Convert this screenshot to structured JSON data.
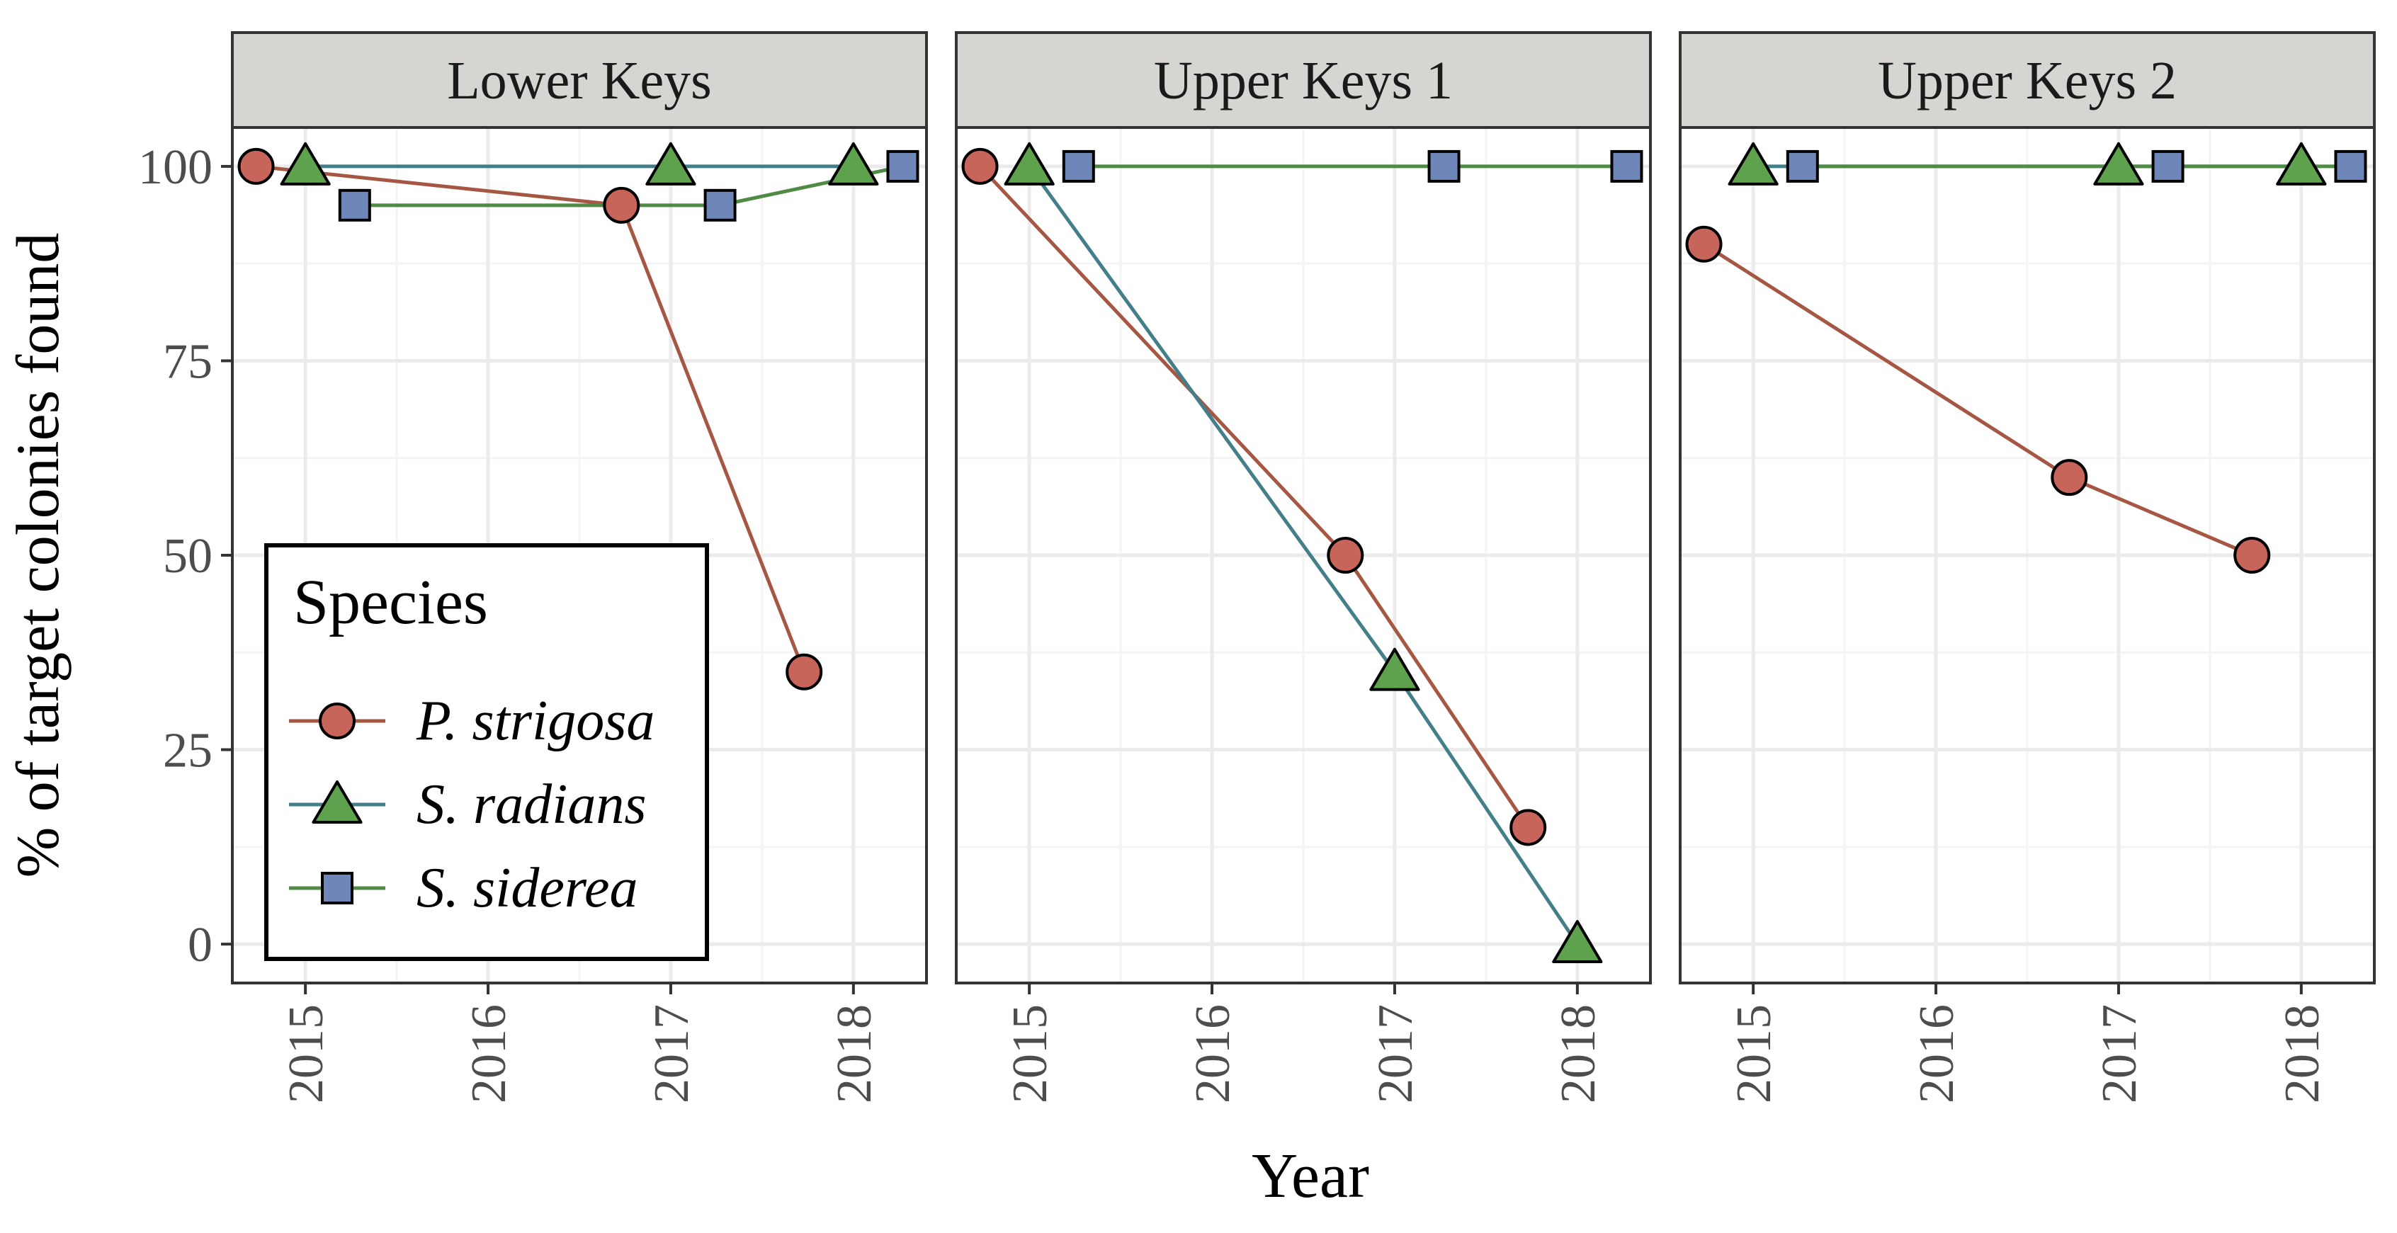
{
  "chart_data": {
    "type": "line",
    "facets": [
      {
        "title": "Lower Keys",
        "series": [
          {
            "name": "P. strigosa",
            "x": [
              2014.73,
              2016.73,
              2017.73
            ],
            "y": [
              100,
              95,
              35
            ]
          },
          {
            "name": "S. radians",
            "x": [
              2015,
              2017,
              2018
            ],
            "y": [
              100,
              100,
              100
            ]
          },
          {
            "name": "S. siderea",
            "x": [
              2015.27,
              2017.27,
              2018.27
            ],
            "y": [
              95,
              95,
              100
            ]
          }
        ]
      },
      {
        "title": "Upper Keys 1",
        "series": [
          {
            "name": "P. strigosa",
            "x": [
              2014.73,
              2016.73,
              2017.73
            ],
            "y": [
              100,
              50,
              15
            ]
          },
          {
            "name": "S. radians",
            "x": [
              2015,
              2017,
              2018
            ],
            "y": [
              100,
              35,
              0
            ]
          },
          {
            "name": "S. siderea",
            "x": [
              2015.27,
              2017.27,
              2018.27
            ],
            "y": [
              100,
              100,
              100
            ]
          }
        ]
      },
      {
        "title": "Upper Keys 2",
        "series": [
          {
            "name": "P. strigosa",
            "x": [
              2014.73,
              2016.73,
              2017.73
            ],
            "y": [
              90,
              60,
              50
            ]
          },
          {
            "name": "S. radians",
            "x": [
              2015,
              2017,
              2018
            ],
            "y": [
              100,
              100,
              100
            ]
          },
          {
            "name": "S. siderea",
            "x": [
              2015.27,
              2017.27,
              2018.27
            ],
            "y": [
              100,
              100,
              100
            ]
          }
        ]
      }
    ],
    "xlabel": "Year",
    "ylabel": "% of target colonies found",
    "x_ticks": [
      "2015",
      "2016",
      "2017",
      "2018"
    ],
    "y_ticks": [
      "0",
      "25",
      "50",
      "75",
      "100"
    ],
    "xlim": [
      2014.6,
      2018.4
    ],
    "ylim": [
      -5,
      105
    ],
    "grid": true,
    "legend": {
      "title": "Species",
      "placement": "inside-bottom-left of first panel",
      "entries": [
        {
          "label": "P. strigosa",
          "shape": "circle",
          "fill": "#C8655A",
          "line": "#A65743"
        },
        {
          "label": "S. radians",
          "shape": "triangle",
          "fill": "#5FA24E",
          "line": "#447F89"
        },
        {
          "label": "S. siderea",
          "shape": "square",
          "fill": "#6F86B8",
          "line": "#4F8B45"
        }
      ]
    },
    "colors": {
      "strip_bg": "#D6D5D1",
      "panel_border": "#333333",
      "grid_major": "#EBEBEB",
      "grid_minor": "#F4F4F4"
    }
  }
}
